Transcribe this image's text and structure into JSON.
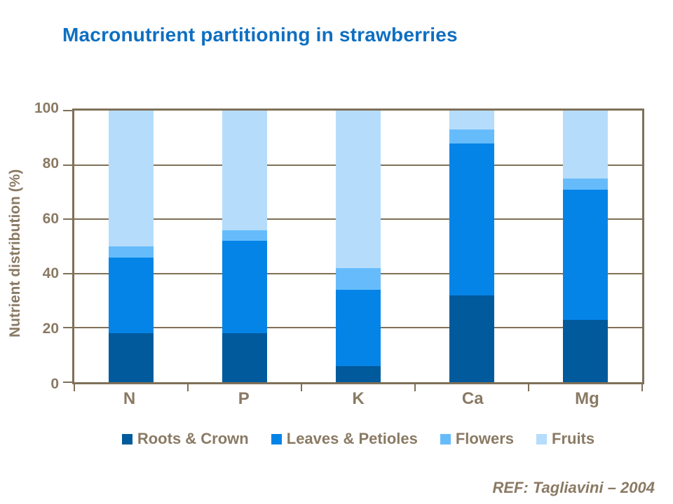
{
  "title": "Macronutrient partitioning in strawberries",
  "footer": {
    "ref": "REF: Tagliavini – 2004"
  },
  "colors": {
    "title": "#0E6FC1",
    "axis_text": "#8A7A64",
    "frame": "#7F7058",
    "background": "#FFFFFF"
  },
  "chart_data": {
    "type": "bar",
    "stacked": true,
    "title": "Macronutrient partitioning in strawberries",
    "xlabel": "",
    "ylabel": "Nutrient distribution (%)",
    "categories": [
      "N",
      "P",
      "K",
      "Ca",
      "Mg"
    ],
    "series": [
      {
        "name": "Roots & Crown",
        "color": "#015A9B",
        "values": [
          18,
          18,
          6,
          32,
          23
        ]
      },
      {
        "name": "Leaves & Petioles",
        "color": "#0584E8",
        "values": [
          28,
          34,
          28,
          56,
          48
        ]
      },
      {
        "name": "Flowers",
        "color": "#66BCFB",
        "values": [
          4,
          4,
          8,
          5,
          4
        ]
      },
      {
        "name": "Fruits",
        "color": "#B5DDFB",
        "values": [
          50,
          44,
          58,
          7,
          25
        ]
      }
    ],
    "ylim": [
      0,
      100
    ],
    "yticks": [
      0,
      20,
      40,
      60,
      80,
      100
    ],
    "grid": true,
    "grid_axis": "y",
    "legend_position": "bottom"
  }
}
